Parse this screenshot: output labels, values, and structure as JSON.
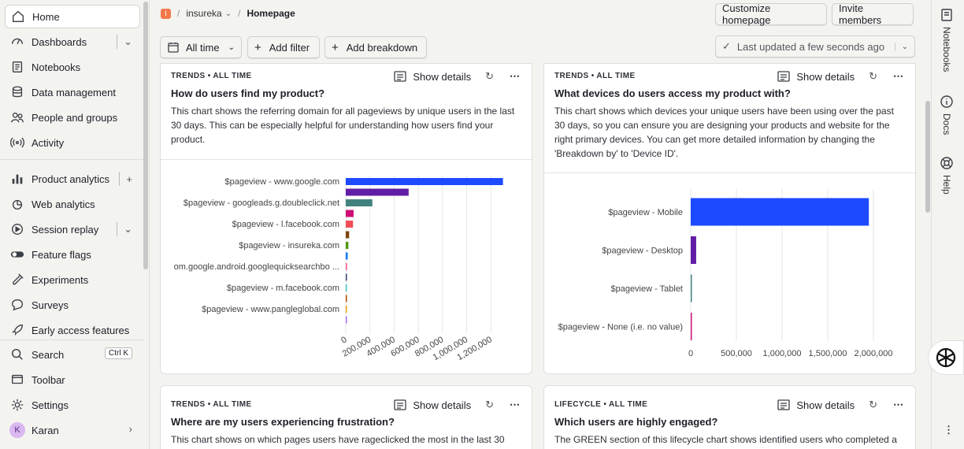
{
  "sidebar": {
    "items": [
      {
        "label": "Home",
        "icon": "home-icon"
      },
      {
        "label": "Dashboards",
        "icon": "dashboard-icon"
      },
      {
        "label": "Notebooks",
        "icon": "notebook-icon"
      },
      {
        "label": "Data management",
        "icon": "database-icon"
      },
      {
        "label": "People and groups",
        "icon": "people-icon"
      },
      {
        "label": "Activity",
        "icon": "activity-icon"
      },
      {
        "label": "Product analytics",
        "icon": "bar-chart-icon"
      },
      {
        "label": "Web analytics",
        "icon": "pie-icon"
      },
      {
        "label": "Session replay",
        "icon": "play-icon"
      },
      {
        "label": "Feature flags",
        "icon": "toggle-icon"
      },
      {
        "label": "Experiments",
        "icon": "flask-icon"
      },
      {
        "label": "Surveys",
        "icon": "chat-icon"
      },
      {
        "label": "Early access features",
        "icon": "rocket-icon"
      }
    ],
    "bottom": {
      "search": "Search",
      "search_shortcut": "Ctrl K",
      "toolbar": "Toolbar",
      "settings": "Settings",
      "user": "Karan",
      "avatar_letter": "K"
    }
  },
  "topbar": {
    "project_initial": "I",
    "project": "insureka",
    "page": "Homepage",
    "customize_label": "Customize homepage",
    "invite_label": "Invite members"
  },
  "filterbar": {
    "date_range": "All time",
    "add_filter": "Add filter",
    "add_breakdown": "Add breakdown",
    "last_updated": "Last updated a few seconds ago"
  },
  "cards": [
    {
      "tag": "TRENDS • ALL TIME",
      "title": "How do users find my product?",
      "description": "This chart shows the referring domain for all pageviews by unique users in the last 30 days. This can be especially helpful for understanding how users find your product.",
      "show_details": "Show details"
    },
    {
      "tag": "TRENDS • ALL TIME",
      "title": "What devices do users access my product with?",
      "description": "This chart shows which devices your unique users have been using over the past 30 days, so you can ensure you are designing your products and website for the right primary devices. You can get more detailed information by changing the 'Breakdown by' to 'Device ID'.",
      "show_details": "Show details"
    },
    {
      "tag": "TRENDS • ALL TIME",
      "title": "Where are my users experiencing frustration?",
      "description": "This chart shows on which pages users have rageclicked the most in the last 30",
      "show_details": "Show details"
    },
    {
      "tag": "LIFECYCLE • ALL TIME",
      "title": "Which users are highly engaged?",
      "description": "The GREEN section of this lifecycle chart shows identified users who completed a",
      "show_details": "Show details"
    }
  ],
  "rail": {
    "notebooks": "Notebooks",
    "docs": "Docs",
    "help": "Help"
  },
  "chart_data": [
    {
      "type": "bar",
      "orientation": "horizontal",
      "categories": [
        "$pageview - www.google.com",
        "$pageview - googleads.g.doubleclick.net",
        "$pageview - l.facebook.com",
        "$pageview - insureka.com",
        "om.google.android.googlequicksearchbo ...",
        "$pageview - m.facebook.com",
        "$pageview - www.pangleglobal.com"
      ],
      "all_bars": [
        {
          "value": 1300000,
          "color": "#1d4aff",
          "label_index": 0
        },
        {
          "value": 520000,
          "color": "#621da6",
          "label_index": null
        },
        {
          "value": 220000,
          "color": "#42827e",
          "label_index": 1
        },
        {
          "value": 65000,
          "color": "#ce0e74",
          "label_index": null
        },
        {
          "value": 60000,
          "color": "#f14f58",
          "label_index": 2
        },
        {
          "value": 28000,
          "color": "#7c440e",
          "label_index": null
        },
        {
          "value": 22000,
          "color": "#529a0a",
          "label_index": 3
        },
        {
          "value": 16000,
          "color": "#0476fb",
          "label_index": null
        },
        {
          "value": 12000,
          "color": "#fe729e",
          "label_index": 4
        },
        {
          "value": 9000,
          "color": "#35416b",
          "label_index": null
        },
        {
          "value": 6000,
          "color": "#41cbc4",
          "label_index": 5
        },
        {
          "value": 4000,
          "color": "#b64b02",
          "label_index": null
        },
        {
          "value": 3000,
          "color": "#e4a604",
          "label_index": 6
        },
        {
          "value": 2000,
          "color": "#a56eff",
          "label_index": null
        }
      ],
      "xticks": [
        "0",
        "200,000",
        "400,000",
        "600,000",
        "800,000",
        "1,000,000",
        "1,200,000"
      ],
      "xlim": [
        0,
        1400000
      ],
      "grid": true
    },
    {
      "type": "bar",
      "orientation": "horizontal",
      "categories": [
        "$pageview - Mobile",
        "$pageview - Desktop",
        "$pageview - Tablet",
        "$pageview - None (i.e. no value)"
      ],
      "values": [
        1950000,
        60000,
        4000,
        1500
      ],
      "colors": [
        "#1d4aff",
        "#621da6",
        "#42827e",
        "#ce0e74"
      ],
      "xticks": [
        "0",
        "500,000",
        "1,000,000",
        "1,500,000",
        "2,000,000"
      ],
      "xlim": [
        0,
        2000000
      ],
      "grid": true
    }
  ]
}
